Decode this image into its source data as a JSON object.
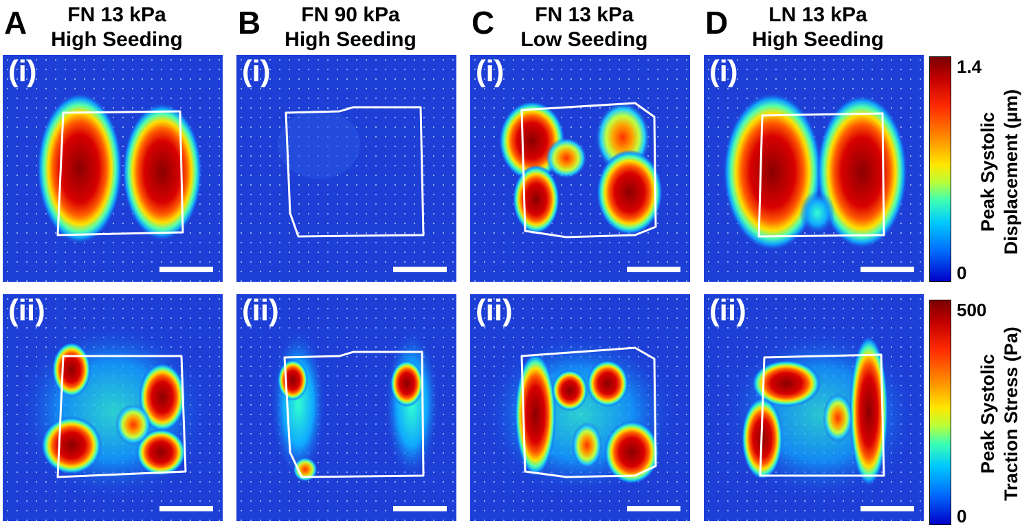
{
  "columns": [
    {
      "letter": "A",
      "line1": "FN 13 kPa",
      "line2": "High Seeding"
    },
    {
      "letter": "B",
      "line1": "FN 90 kPa",
      "line2": "High Seeding"
    },
    {
      "letter": "C",
      "line1": "FN 13 kPa",
      "line2": "Low Seeding"
    },
    {
      "letter": "D",
      "line1": "LN 13 kPa",
      "line2": "High Seeding"
    }
  ],
  "rows": [
    {
      "label": "(i)"
    },
    {
      "label": "(ii)"
    }
  ],
  "colorbars": [
    {
      "max": "1.4",
      "min": "0",
      "line1": "Peak Systolic",
      "line2": "Displacement (µm)"
    },
    {
      "max": "500",
      "min": "0",
      "line1": "Peak Systolic",
      "line2": "Traction Stress (Pa)"
    }
  ],
  "colors": {
    "background_field": "#1d3fd6",
    "hot": "#8b0000",
    "outline": "#ffffff"
  },
  "colormap": "jet"
}
